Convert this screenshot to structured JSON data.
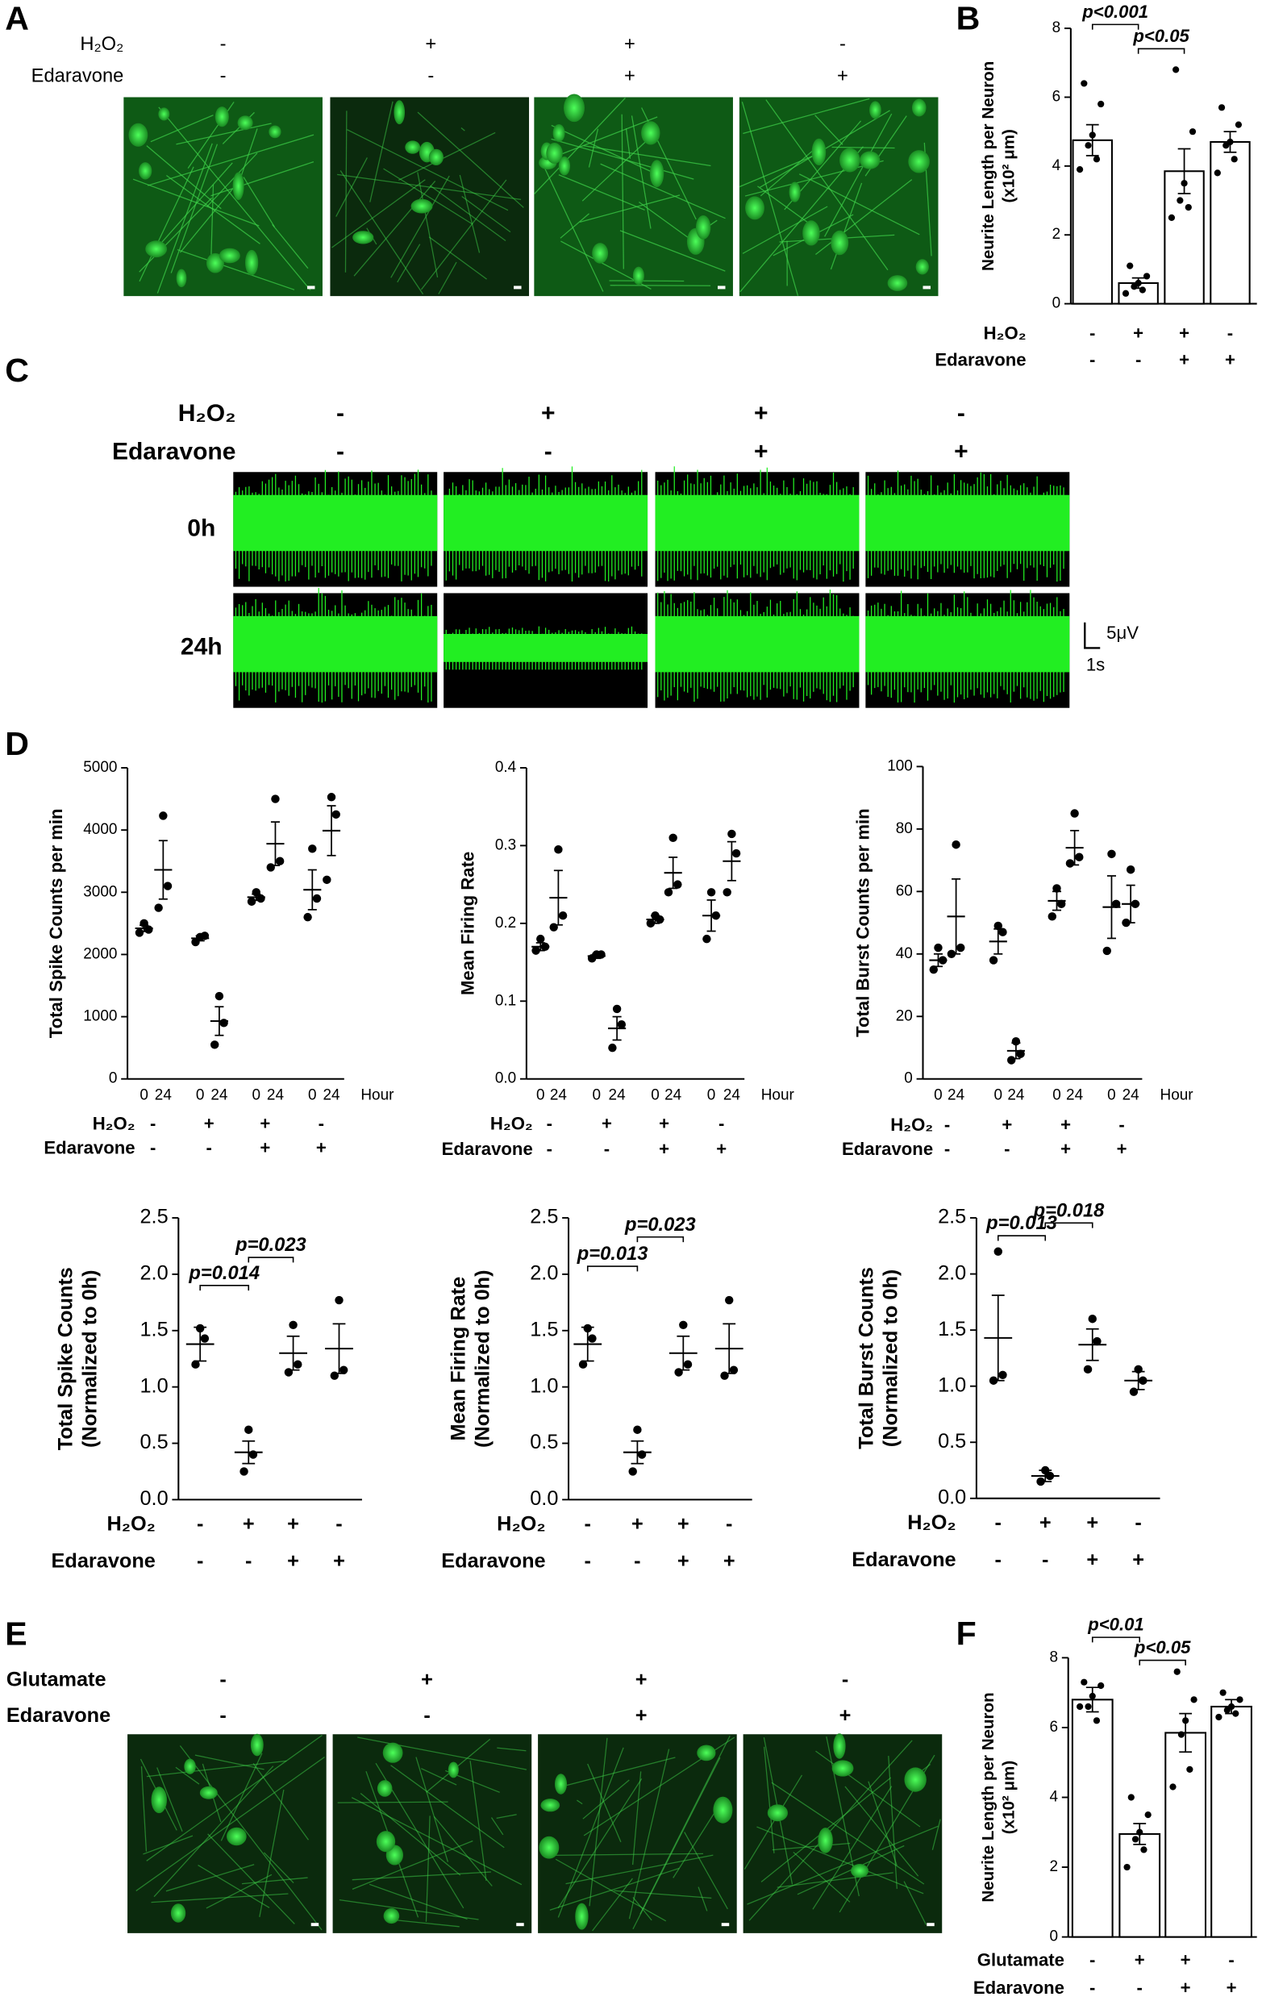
{
  "figure": {
    "letters": [
      "A",
      "B",
      "C",
      "D",
      "E",
      "F"
    ],
    "panel_a": {
      "conditions": [
        {
          "name": "H₂O₂",
          "signs": [
            "-",
            "+",
            "+",
            "-"
          ]
        },
        {
          "name": "Edaravone",
          "signs": [
            "-",
            "-",
            "+",
            "+"
          ]
        }
      ]
    },
    "panel_c": {
      "conditions": [
        {
          "name": "H₂O₂",
          "signs": [
            "-",
            "+",
            "+",
            "-"
          ]
        },
        {
          "name": "Edaravone",
          "signs": [
            "-",
            "-",
            "+",
            "+"
          ]
        }
      ],
      "rows": [
        "0h",
        "24h"
      ],
      "scale": [
        "5μV",
        "1s"
      ]
    },
    "panel_e": {
      "conditions": [
        {
          "name": "Glutamate",
          "signs": [
            "-",
            "+",
            "+",
            "-"
          ]
        },
        {
          "name": "Edaravone",
          "signs": [
            "-",
            "-",
            "+",
            "+"
          ]
        }
      ]
    }
  },
  "chart_data": [
    {
      "type": "bar",
      "ylabel": [
        "Neurite Length per Neuron",
        "(x10² μm)"
      ],
      "ylim": [
        0,
        8
      ],
      "yticks": [
        0,
        2,
        4,
        6,
        8
      ],
      "values": [
        4.75,
        0.6,
        3.85,
        4.7
      ],
      "errors": [
        0.45,
        0.15,
        0.65,
        0.3
      ],
      "points": [
        [
          6.4,
          5.8,
          4.9,
          4.6,
          4.2,
          3.9
        ],
        [
          1.1,
          0.8,
          0.6,
          0.5,
          0.4,
          0.3
        ],
        [
          6.8,
          5.0,
          3.5,
          3.0,
          2.8,
          2.5
        ],
        [
          5.7,
          5.2,
          4.7,
          4.6,
          4.2,
          3.8
        ]
      ],
      "annotations": [
        "p<0.001",
        "p<0.05"
      ],
      "conditions": [
        {
          "name": "H₂O₂",
          "signs": [
            "-",
            "+",
            "+",
            "-"
          ]
        },
        {
          "name": "Edaravone",
          "signs": [
            "-",
            "-",
            "+",
            "+"
          ]
        }
      ]
    },
    {
      "type": "dotplot",
      "ylabel": [
        "Total  Spike Counts per min"
      ],
      "ylim": [
        0,
        5000
      ],
      "yticks": [
        0,
        1000,
        2000,
        3000,
        4000,
        5000
      ],
      "categories": [
        "0",
        "24",
        "0",
        "24",
        "0",
        "24",
        "0",
        "24"
      ],
      "x_unit": "Hour",
      "points": [
        [
          2350,
          2400,
          2500
        ],
        [
          2750,
          3100,
          4230
        ],
        [
          2200,
          2300,
          2280
        ],
        [
          550,
          900,
          1330
        ],
        [
          2850,
          2900,
          3000
        ],
        [
          3400,
          3500,
          4500
        ],
        [
          2600,
          2900,
          3700
        ],
        [
          3200,
          4250,
          4530
        ]
      ],
      "means": [
        2420,
        3360,
        2260,
        930,
        2920,
        3780,
        3040,
        3990
      ],
      "errors": [
        50,
        470,
        40,
        230,
        50,
        350,
        320,
        400
      ],
      "conditions": [
        {
          "name": "H₂O₂",
          "signs": [
            "-",
            "+",
            "+",
            "-"
          ]
        },
        {
          "name": "Edaravone",
          "signs": [
            "-",
            "-",
            "+",
            "+"
          ]
        }
      ]
    },
    {
      "type": "dotplot",
      "ylabel": [
        "Mean Firing Rate"
      ],
      "ylim": [
        0,
        0.4
      ],
      "yticks": [
        {
          "value": 0,
          "label": "0.0"
        },
        0.1,
        0.2,
        0.3,
        0.4
      ],
      "categories": [
        "0",
        "24",
        "0",
        "24",
        "0",
        "24",
        "0",
        "24"
      ],
      "x_unit": "Hour",
      "points": [
        [
          0.165,
          0.17,
          0.18
        ],
        [
          0.195,
          0.21,
          0.295
        ],
        [
          0.155,
          0.16,
          0.16
        ],
        [
          0.04,
          0.07,
          0.09
        ],
        [
          0.2,
          0.205,
          0.21
        ],
        [
          0.24,
          0.25,
          0.31
        ],
        [
          0.18,
          0.21,
          0.24
        ],
        [
          0.24,
          0.29,
          0.315
        ]
      ],
      "means": [
        0.17,
        0.233,
        0.158,
        0.065,
        0.205,
        0.265,
        0.21,
        0.28
      ],
      "errors": [
        0.005,
        0.035,
        0.003,
        0.015,
        0.005,
        0.02,
        0.02,
        0.025
      ],
      "conditions": [
        {
          "name": "H₂O₂",
          "signs": [
            "-",
            "+",
            "+",
            "-"
          ]
        },
        {
          "name": "Edaravone",
          "signs": [
            "-",
            "-",
            "+",
            "+"
          ]
        }
      ]
    },
    {
      "type": "dotplot",
      "ylabel": [
        "Total  Burst Counts per min"
      ],
      "ylim": [
        0,
        100
      ],
      "yticks": [
        0,
        20,
        40,
        60,
        80,
        100
      ],
      "categories": [
        "0",
        "24",
        "0",
        "24",
        "0",
        "24",
        "0",
        "24"
      ],
      "x_unit": "Hour",
      "points": [
        [
          35,
          38,
          42
        ],
        [
          40,
          42,
          75
        ],
        [
          38,
          47,
          49
        ],
        [
          6,
          8,
          12
        ],
        [
          52,
          56,
          61
        ],
        [
          69,
          71,
          85
        ],
        [
          41,
          56,
          72
        ],
        [
          50,
          56,
          67
        ]
      ],
      "means": [
        38,
        52,
        44,
        9,
        57,
        74,
        55,
        56
      ],
      "errors": [
        2,
        12,
        4,
        2.5,
        3,
        5.5,
        10,
        6
      ],
      "conditions": [
        {
          "name": "H₂O₂",
          "signs": [
            "-",
            "+",
            "+",
            "-"
          ]
        },
        {
          "name": "Edaravone",
          "signs": [
            "-",
            "-",
            "+",
            "+"
          ]
        }
      ]
    },
    {
      "type": "dotplot",
      "ylabel": [
        "Total Spike Counts",
        "(Normalized to 0h)"
      ],
      "ylim": [
        0,
        2.5
      ],
      "yticks": [
        {
          "value": 0,
          "label": "0.0"
        },
        0.5,
        {
          "value": 1,
          "label": "1.0"
        },
        1.5,
        {
          "value": 2,
          "label": "2.0"
        },
        2.5
      ],
      "points": [
        [
          1.2,
          1.43,
          1.52
        ],
        [
          0.25,
          0.4,
          0.62
        ],
        [
          1.13,
          1.2,
          1.55
        ],
        [
          1.1,
          1.15,
          1.77
        ]
      ],
      "means": [
        1.38,
        0.42,
        1.3,
        1.34
      ],
      "errors": [
        0.15,
        0.1,
        0.15,
        0.22
      ],
      "annotations": [
        "p=0.014",
        "p=0.023"
      ],
      "conditions": [
        {
          "name": "H₂O₂",
          "signs": [
            "-",
            "+",
            "+",
            "-"
          ]
        },
        {
          "name": "Edaravone",
          "signs": [
            "-",
            "-",
            "+",
            "+"
          ]
        }
      ]
    },
    {
      "type": "dotplot",
      "ylabel": [
        "Mean Firing Rate",
        "(Normalized to 0h)"
      ],
      "ylim": [
        0,
        2.5
      ],
      "yticks": [
        {
          "value": 0,
          "label": "0.0"
        },
        0.5,
        {
          "value": 1,
          "label": "1.0"
        },
        1.5,
        {
          "value": 2,
          "label": "2.0"
        },
        2.5
      ],
      "points": [
        [
          1.2,
          1.43,
          1.52
        ],
        [
          0.25,
          0.4,
          0.62
        ],
        [
          1.13,
          1.2,
          1.55
        ],
        [
          1.1,
          1.15,
          1.77
        ]
      ],
      "means": [
        1.38,
        0.42,
        1.3,
        1.34
      ],
      "errors": [
        0.15,
        0.1,
        0.15,
        0.22
      ],
      "annotations": [
        "p=0.013",
        "p=0.023"
      ],
      "conditions": [
        {
          "name": "H₂O₂",
          "signs": [
            "-",
            "+",
            "+",
            "-"
          ]
        },
        {
          "name": "Edaravone",
          "signs": [
            "-",
            "-",
            "+",
            "+"
          ]
        }
      ]
    },
    {
      "type": "dotplot",
      "ylabel": [
        "Total Burst Counts",
        "(Normalized to 0h)"
      ],
      "ylim": [
        0,
        2.5
      ],
      "yticks": [
        {
          "value": 0,
          "label": "0.0"
        },
        0.5,
        {
          "value": 1,
          "label": "1.0"
        },
        1.5,
        {
          "value": 2,
          "label": "2.0"
        },
        2.5
      ],
      "points": [
        [
          1.05,
          1.1,
          2.2
        ],
        [
          0.15,
          0.2,
          0.25
        ],
        [
          1.15,
          1.4,
          1.6
        ],
        [
          0.95,
          1.05,
          1.15
        ]
      ],
      "means": [
        1.43,
        0.2,
        1.37,
        1.05
      ],
      "errors": [
        0.38,
        0.05,
        0.14,
        0.08
      ],
      "annotations": [
        "p=0.013",
        "p=0.018"
      ],
      "conditions": [
        {
          "name": "H₂O₂",
          "signs": [
            "-",
            "+",
            "+",
            "-"
          ]
        },
        {
          "name": "Edaravone",
          "signs": [
            "-",
            "-",
            "+",
            "+"
          ]
        }
      ]
    },
    {
      "type": "bar",
      "ylabel": [
        "Neurite Length per Neuron",
        "(x10² μm)"
      ],
      "ylim": [
        0,
        8
      ],
      "yticks": [
        0,
        2,
        4,
        6,
        8
      ],
      "values": [
        6.8,
        2.95,
        5.85,
        6.6
      ],
      "errors": [
        0.35,
        0.3,
        0.55,
        0.2
      ],
      "points": [
        [
          7.3,
          7.2,
          6.9,
          6.6,
          6.2,
          6.6
        ],
        [
          4.0,
          3.5,
          3.0,
          2.8,
          2.5,
          2.0
        ],
        [
          7.6,
          6.8,
          6.2,
          5.8,
          4.8,
          4.3
        ],
        [
          7.0,
          6.8,
          6.6,
          6.5,
          6.4,
          6.3
        ]
      ],
      "annotations": [
        "p<0.01",
        "p<0.05"
      ],
      "conditions": [
        {
          "name": "Glutamate",
          "signs": [
            "-",
            "+",
            "+",
            "-"
          ]
        },
        {
          "name": "Edaravone",
          "signs": [
            "-",
            "-",
            "+",
            "+"
          ]
        }
      ]
    }
  ]
}
